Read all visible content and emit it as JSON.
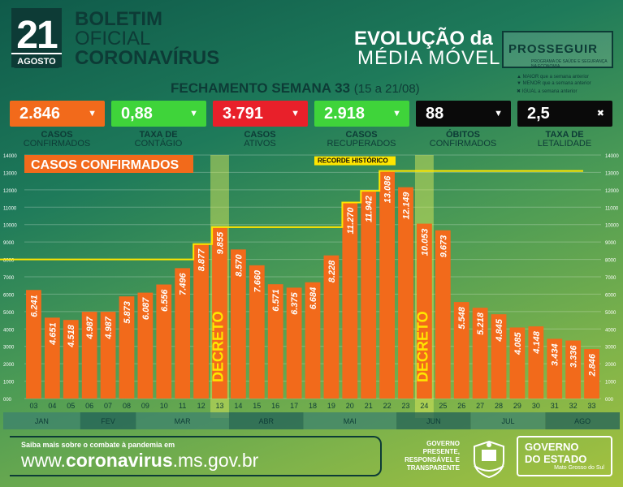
{
  "header": {
    "day": "21",
    "month": "AGOSTO",
    "title1": "BOLETIM",
    "title2": "OFICIAL",
    "title3": "CORONAVÍRUS",
    "evolution1": "EVOLUÇÃO da",
    "evolution2": "MÉDIA MÓVEL",
    "brand": "PROSSEGUIR",
    "brand_sub": "PROGRAMA DE SAÚDE E SEGURANÇA NA ECONOMIA",
    "week_title": "FECHAMENTO SEMANA 33",
    "week_range": "(15 a 21/08)",
    "legend": [
      "MAIOR que a semana anterior",
      "MENOR que a semana anterior",
      "IGUAL a semana anterior"
    ]
  },
  "kpis": [
    {
      "value": "2.846",
      "arrow": "▼",
      "label1": "CASOS",
      "label2": "CONFIRMADOS",
      "color": "#f26a1b"
    },
    {
      "value": "0,88",
      "arrow": "▼",
      "label1": "TAXA DE",
      "label2": "CONTÁGIO",
      "color": "#3fd43a"
    },
    {
      "value": "3.791",
      "arrow": "▼",
      "label1": "CASOS",
      "label2": "ATIVOS",
      "color": "#e8202a"
    },
    {
      "value": "2.918",
      "arrow": "▼",
      "label1": "CASOS",
      "label2": "RECUPERADOS",
      "color": "#3fd43a"
    },
    {
      "value": "88",
      "arrow": "▼",
      "label1": "ÓBITOS",
      "label2": "CONFIRMADOS",
      "color": "#0a0a0a"
    },
    {
      "value": "2,5",
      "arrow": "✖",
      "label1": "TAXA DE",
      "label2": "LETALIDADE",
      "color": "#0a0a0a"
    }
  ],
  "chart_data": {
    "type": "bar",
    "title": "CASOS CONFIRMADOS",
    "categories": [
      "03",
      "04",
      "05",
      "06",
      "07",
      "08",
      "09",
      "10",
      "11",
      "12",
      "13",
      "14",
      "15",
      "16",
      "17",
      "18",
      "19",
      "20",
      "21",
      "22",
      "23",
      "24",
      "25",
      "26",
      "27",
      "28",
      "29",
      "30",
      "31",
      "32",
      "33"
    ],
    "values": [
      6241,
      4651,
      4518,
      4987,
      4987,
      5873,
      6087,
      6556,
      7496,
      8877,
      9855,
      8570,
      7660,
      6571,
      6375,
      6684,
      8228,
      11270,
      11942,
      13086,
      12149,
      10053,
      9673,
      5548,
      5218,
      4845,
      4085,
      4148,
      3434,
      3336,
      2846
    ],
    "value_labels": [
      "6.241",
      "4.651",
      "4.518",
      "4.987",
      "4.987",
      "5.873",
      "6.087",
      "6.556",
      "7.496",
      "8.877",
      "9.855",
      "8.570",
      "7.660",
      "6.571",
      "6.375",
      "6.684",
      "8.228",
      "11.270",
      "11.942",
      "13.086",
      "12.149",
      "10.053",
      "9.673",
      "5.548",
      "5.218",
      "4.845",
      "4.085",
      "4.148",
      "3.434",
      "3.336",
      "2.846"
    ],
    "ylim": [
      0,
      14000
    ],
    "yticks": [
      0,
      1000,
      2000,
      3000,
      4000,
      5000,
      6000,
      7000,
      8000,
      9000,
      10000,
      11000,
      12000,
      13000,
      14000
    ],
    "ytick_labels": [
      "000",
      "1000",
      "2000",
      "3000",
      "4000",
      "5000",
      "6000",
      "7000",
      "8000",
      "9000",
      "10000",
      "11000",
      "12000",
      "13000",
      "14000"
    ],
    "bar_color": "#f26a1b",
    "record_label": "RECORDE HISTÓRICO",
    "record_value": 13000,
    "decree_label": "DECRETO",
    "decree_weeks": [
      [
        "13",
        "14"
      ],
      [
        "24",
        "25"
      ]
    ],
    "months": [
      {
        "label": "JAN",
        "from": "03",
        "to": "05"
      },
      {
        "label": "FEV",
        "from": "06",
        "to": "08"
      },
      {
        "label": "MAR",
        "from": "09",
        "to": "13"
      },
      {
        "label": "ABR",
        "from": "14",
        "to": "17"
      },
      {
        "label": "MAI",
        "from": "18",
        "to": "22"
      },
      {
        "label": "JUN",
        "from": "23",
        "to": "26"
      },
      {
        "label": "JUL",
        "from": "27",
        "to": "30"
      },
      {
        "label": "AGO",
        "from": "31",
        "to": "33"
      }
    ]
  },
  "footer": {
    "small": "Saiba mais sobre o combate à pandemia em",
    "url_prefix": "www.",
    "url_bold": "coronavirus",
    "url_suffix": ".ms.gov.br",
    "gov_tag": [
      "GOVERNO",
      "PRESENTE,",
      "RESPONSÁVEL E",
      "TRANSPARENTE"
    ],
    "gov_box1": "GOVERNO",
    "gov_box2": "DO ESTADO",
    "gov_box3": "Mato Grosso do Sul"
  }
}
